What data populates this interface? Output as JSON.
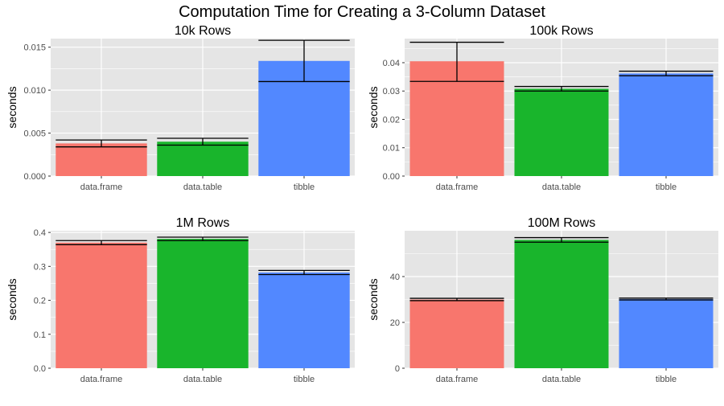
{
  "title": "Computation Time for Creating a 3-Column Dataset",
  "colors": {
    "panel_bg": "#e5e5e5",
    "gridline": "#ffffff",
    "data.frame": "#f8766d",
    "data.table": "#19b52c",
    "tibble": "#5288ff",
    "errorbar": "#000000"
  },
  "chart_data": [
    {
      "type": "bar",
      "title": "10k Rows",
      "xlabel": "",
      "ylabel": "seconds",
      "categories": [
        "data.frame",
        "data.table",
        "tibble"
      ],
      "values": [
        0.0038,
        0.004,
        0.0134
      ],
      "error_low": [
        0.0034,
        0.0036,
        0.011
      ],
      "error_high": [
        0.0042,
        0.0044,
        0.0158
      ],
      "ylim": [
        0,
        0.016
      ],
      "yticks": [
        0,
        0.005,
        0.01,
        0.015
      ],
      "ytick_labels": [
        "0.000",
        "0.005",
        "0.010",
        "0.015"
      ],
      "grid": true,
      "legend": "none"
    },
    {
      "type": "bar",
      "title": "100k Rows",
      "xlabel": "",
      "ylabel": "seconds",
      "categories": [
        "data.frame",
        "data.table",
        "tibble"
      ],
      "values": [
        0.0405,
        0.0308,
        0.0362
      ],
      "error_low": [
        0.0334,
        0.03,
        0.0354
      ],
      "error_high": [
        0.0472,
        0.0316,
        0.037
      ],
      "ylim": [
        0,
        0.0485
      ],
      "yticks": [
        0,
        0.01,
        0.02,
        0.03,
        0.04
      ],
      "ytick_labels": [
        "0.00",
        "0.01",
        "0.02",
        "0.03",
        "0.04"
      ],
      "grid": true,
      "legend": "none"
    },
    {
      "type": "bar",
      "title": "1M Rows",
      "xlabel": "",
      "ylabel": "seconds",
      "categories": [
        "data.frame",
        "data.table",
        "tibble"
      ],
      "values": [
        0.37,
        0.381,
        0.282
      ],
      "error_low": [
        0.364,
        0.376,
        0.276
      ],
      "error_high": [
        0.376,
        0.386,
        0.288
      ],
      "ylim": [
        0,
        0.405
      ],
      "yticks": [
        0,
        0.1,
        0.2,
        0.3,
        0.4
      ],
      "ytick_labels": [
        "0.0",
        "0.1",
        "0.2",
        "0.3",
        "0.4"
      ],
      "grid": true,
      "legend": "none"
    },
    {
      "type": "bar",
      "title": "100M Rows",
      "xlabel": "",
      "ylabel": "seconds",
      "categories": [
        "data.frame",
        "data.table",
        "tibble"
      ],
      "values": [
        30.0,
        56.0,
        30.2
      ],
      "error_low": [
        29.5,
        55.0,
        29.8
      ],
      "error_high": [
        30.5,
        57.0,
        30.6
      ],
      "ylim": [
        0,
        60
      ],
      "yticks": [
        0,
        20,
        40
      ],
      "ytick_labels": [
        "0",
        "20",
        "40"
      ],
      "grid": true,
      "legend": "none"
    }
  ]
}
